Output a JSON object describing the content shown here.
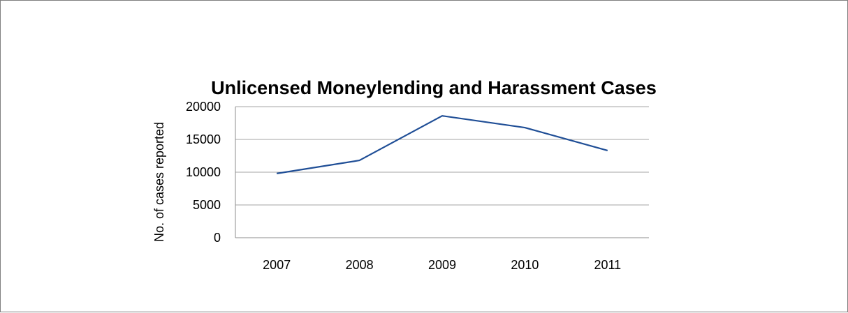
{
  "chart_data": {
    "type": "line",
    "title": "Unlicensed Moneylending and Harassment Cases",
    "xlabel": "",
    "ylabel": "No. of cases reported",
    "categories": [
      "2007",
      "2008",
      "2009",
      "2010",
      "2011"
    ],
    "series": [
      {
        "values": [
          9800,
          11800,
          18600,
          16800,
          13300
        ],
        "color": "#1f4e96"
      }
    ],
    "ylim": [
      0,
      20000
    ],
    "yticks": [
      0,
      5000,
      10000,
      15000,
      20000
    ],
    "grid": true,
    "legend": "none"
  }
}
